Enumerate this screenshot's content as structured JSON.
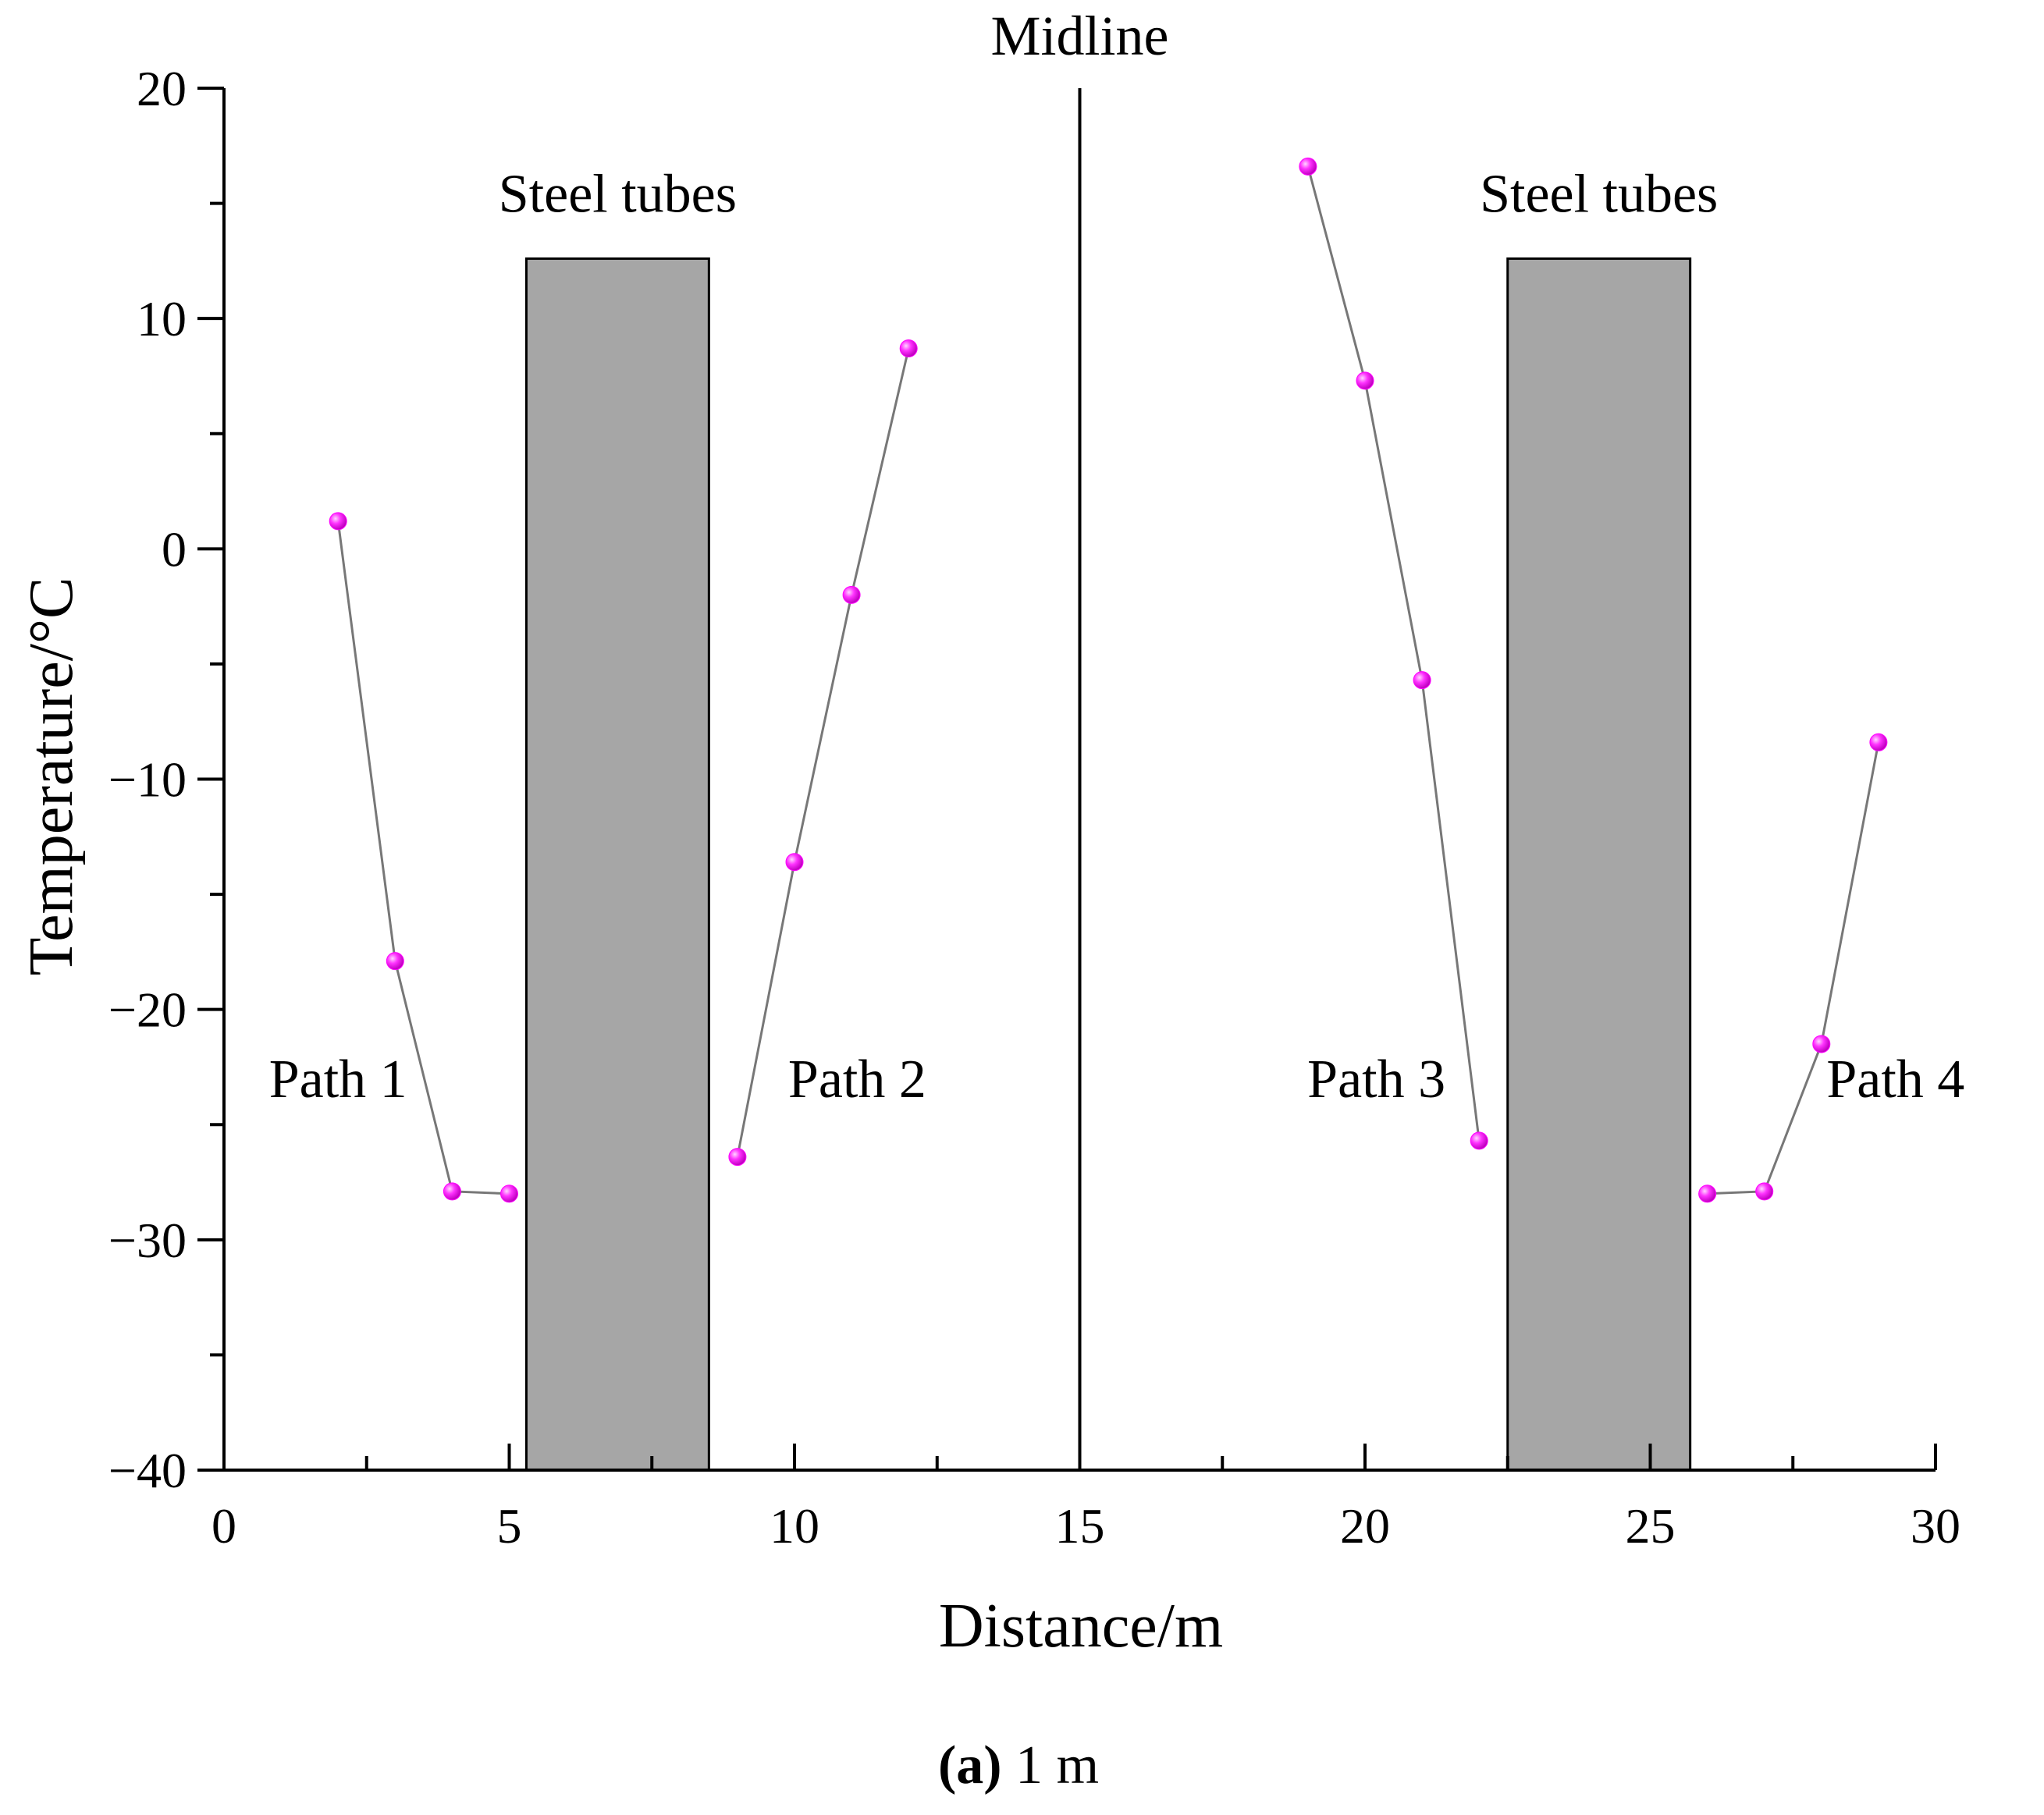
{
  "chart_data": {
    "type": "scatter",
    "title": "",
    "xlabel": "Distance/m",
    "ylabel": "Temperature/°C",
    "xlim": [
      0,
      30
    ],
    "ylim": [
      -40,
      20
    ],
    "x_ticks": [
      0,
      5,
      10,
      15,
      20,
      25,
      30
    ],
    "y_ticks": [
      -40,
      -30,
      -20,
      -10,
      0,
      10,
      20
    ],
    "x_tick_labels": [
      "0",
      "5",
      "10",
      "15",
      "20",
      "25",
      "30"
    ],
    "y_tick_labels": [
      "−40",
      "−30",
      "−20",
      "−10",
      "0",
      "10",
      "20"
    ],
    "grid": false,
    "midline": {
      "x": 15,
      "label": "Midline"
    },
    "steel_tubes": [
      {
        "x_start": 5.3,
        "x_end": 8.5,
        "top": 12.6,
        "label": "Steel tubes"
      },
      {
        "x_start": 22.5,
        "x_end": 25.7,
        "top": 12.6,
        "label": "Steel tubes"
      }
    ],
    "series": [
      {
        "name": "Path 1",
        "x": [
          2,
          3,
          4,
          5
        ],
        "y": [
          1.2,
          -17.9,
          -27.9,
          -28.0
        ],
        "label_anchor": [
          2.0,
          -23.8
        ]
      },
      {
        "name": "Path 2",
        "x": [
          9,
          10,
          11,
          12
        ],
        "y": [
          -26.4,
          -13.6,
          -2.0,
          8.7
        ],
        "label_anchor": [
          11.1,
          -23.8
        ]
      },
      {
        "name": "Path 3",
        "x": [
          19,
          20,
          21,
          22
        ],
        "y": [
          16.6,
          7.3,
          -5.7,
          -25.7
        ],
        "label_anchor": [
          20.2,
          -23.8
        ]
      },
      {
        "name": "Path 4",
        "x": [
          26,
          27,
          28,
          29
        ],
        "y": [
          -28.0,
          -27.9,
          -21.5,
          -8.4
        ],
        "label_anchor": [
          29.3,
          -23.8
        ]
      }
    ],
    "colors": {
      "marker": "#ff00ff",
      "line": "#777777",
      "tube_fill": "#a6a6a6"
    },
    "caption_letter": "(a)",
    "caption_rest": " 1 m"
  }
}
